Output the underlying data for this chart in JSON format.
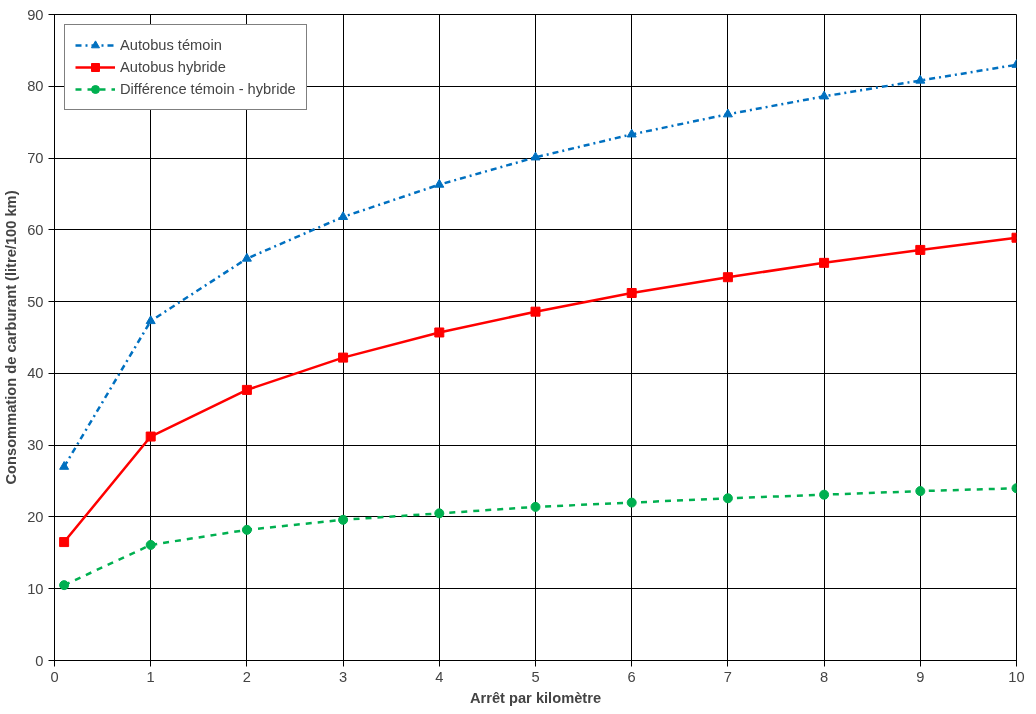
{
  "chart_data": {
    "type": "line",
    "xlabel": "Arrêt par kilomètre",
    "ylabel": "Consommation de carburant (litre/100 km)",
    "x": [
      0.1,
      1,
      2,
      3,
      4,
      5,
      6,
      7,
      8,
      9,
      10
    ],
    "series": [
      {
        "name": "Autobus témoin",
        "color": "#0070c0",
        "marker": "triangle",
        "line_style": "dashdot",
        "values": [
          27,
          47.3,
          56,
          61.8,
          66.3,
          70.1,
          73.3,
          76.1,
          78.6,
          80.8,
          83
        ]
      },
      {
        "name": "Autobus hybride",
        "color": "#ff0000",
        "marker": "square",
        "line_style": "solid",
        "values": [
          16.5,
          31.2,
          37.7,
          42.2,
          45.7,
          48.6,
          51.2,
          53.4,
          55.4,
          57.2,
          58.9
        ]
      },
      {
        "name": "Différence témoin - hybride",
        "color": "#00b050",
        "marker": "circle",
        "line_style": "dashed",
        "values": [
          10.5,
          16.1,
          18.2,
          19.6,
          20.5,
          21.4,
          22.0,
          22.6,
          23.1,
          23.6,
          24.0
        ]
      }
    ],
    "xlim": [
      0,
      10
    ],
    "xticks": [
      0,
      1,
      2,
      3,
      4,
      5,
      6,
      7,
      8,
      9,
      10
    ],
    "ylim": [
      0,
      90
    ],
    "yticks": [
      0,
      10,
      20,
      30,
      40,
      50,
      60,
      70,
      80,
      90
    ],
    "grid": true,
    "legend": "top left"
  }
}
